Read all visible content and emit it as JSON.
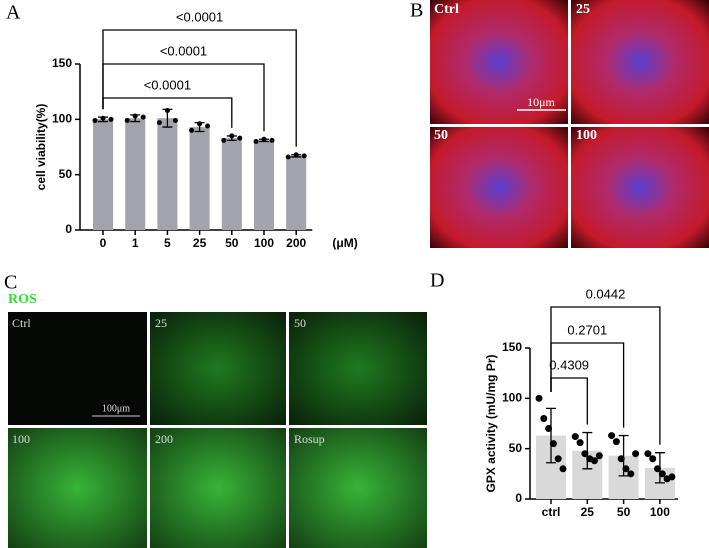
{
  "figure": {
    "letters": [
      "A",
      "B",
      "C",
      "D"
    ],
    "panel_b": {
      "labels": [
        "Ctrl",
        "25",
        "50",
        "100"
      ],
      "scale_bar": "10μm"
    },
    "panel_c": {
      "title": "ROS",
      "labels": [
        "Ctrl",
        "25",
        "50",
        "100",
        "200",
        "Rosup"
      ],
      "scale_bar": "100μm"
    }
  },
  "chart_data": [
    {
      "type": "bar",
      "ylabel": "cell viability(%)",
      "xlabel": "(μM)",
      "categories": [
        "0",
        "1",
        "5",
        "25",
        "50",
        "100",
        "200"
      ],
      "values": [
        100,
        101,
        101,
        93,
        83,
        81,
        67
      ],
      "errors": [
        2,
        3,
        8,
        4,
        2,
        1,
        1
      ],
      "points": [
        [
          99,
          101,
          100
        ],
        [
          99,
          103,
          102
        ],
        [
          97,
          108,
          99
        ],
        [
          90,
          96,
          94
        ],
        [
          81,
          85,
          83
        ],
        [
          80,
          82,
          81
        ],
        [
          66,
          68,
          67
        ]
      ],
      "color": "#a3a3ab",
      "ylim": [
        0,
        150
      ],
      "yticks": [
        0,
        50,
        100,
        150
      ],
      "comparisons": [
        {
          "groups": [
            "0",
            "50"
          ],
          "label": "<0.0001"
        },
        {
          "groups": [
            "0",
            "100"
          ],
          "label": "<0.0001"
        },
        {
          "groups": [
            "0",
            "200"
          ],
          "label": "<0.0001"
        }
      ]
    },
    {
      "type": "bar",
      "ylabel": "GPX activity (mU/mg Pr)",
      "categories": [
        "ctrl",
        "25",
        "50",
        "100"
      ],
      "values": [
        63,
        48,
        43,
        31
      ],
      "errors": [
        27,
        18,
        20,
        15
      ],
      "points": [
        [
          100,
          80,
          70,
          55,
          40,
          30
        ],
        [
          62,
          56,
          45,
          40,
          38,
          43
        ],
        [
          63,
          57,
          40,
          30,
          25,
          45
        ],
        [
          45,
          40,
          30,
          25,
          20,
          22
        ]
      ],
      "color": "#d9d9d9",
      "ylim": [
        0,
        150
      ],
      "yticks": [
        0,
        50,
        100,
        150
      ],
      "comparisons": [
        {
          "groups": [
            "ctrl",
            "25"
          ],
          "label": "0.4309"
        },
        {
          "groups": [
            "ctrl",
            "50"
          ],
          "label": "0.2701"
        },
        {
          "groups": [
            "ctrl",
            "100"
          ],
          "label": "0.0442"
        }
      ]
    }
  ]
}
